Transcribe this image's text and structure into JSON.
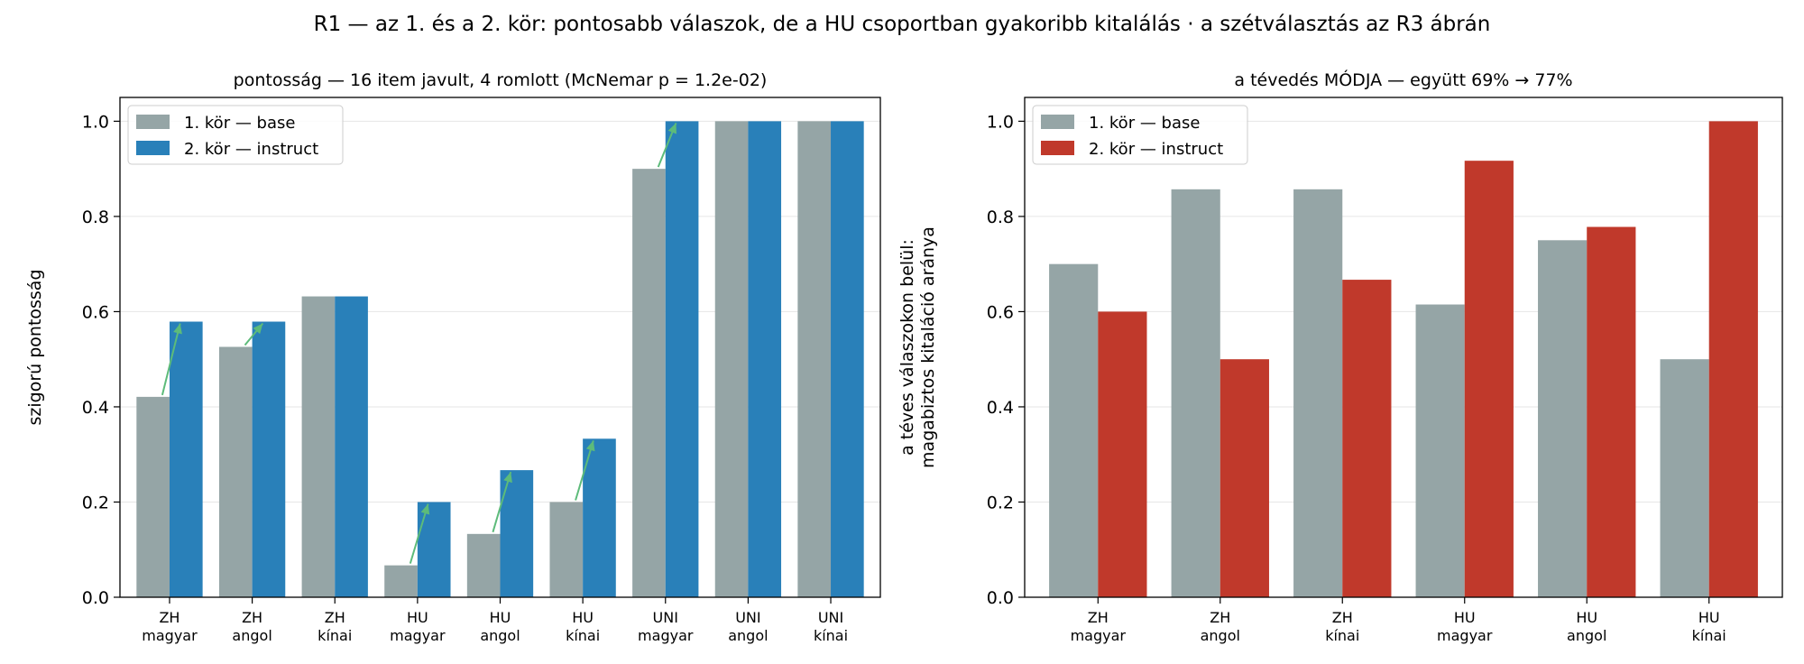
{
  "figure": {
    "suptitle": "R1 — az 1. és a 2. kör: pontosabb válaszok, de a HU csoportban gyakoribb kitalálás  ·  a szétválasztás az R3 ábrán"
  },
  "colors": {
    "base": "#95a5a6",
    "instruct_accuracy": "#2980b9",
    "instruct_guess": "#c0392b",
    "arrow": "#5dbb7a",
    "grid": "#e6e6e6"
  },
  "chart_data": [
    {
      "type": "bar",
      "title": "pontosság — 16 item javult, 4 romlott (McNemar p = 1.2e-02)",
      "xlabel": "",
      "ylabel": "szigorú pontosság",
      "ylim": [
        0,
        1.05
      ],
      "yticks": [
        "0.0",
        "0.2",
        "0.4",
        "0.6",
        "0.8",
        "1.0"
      ],
      "grid": "horizontal",
      "legend_position": "top-left",
      "categories": [
        [
          "ZH",
          "magyar"
        ],
        [
          "ZH",
          "angol"
        ],
        [
          "ZH",
          "kínai"
        ],
        [
          "HU",
          "magyar"
        ],
        [
          "HU",
          "angol"
        ],
        [
          "HU",
          "kínai"
        ],
        [
          "UNI",
          "magyar"
        ],
        [
          "UNI",
          "angol"
        ],
        [
          "UNI",
          "kínai"
        ]
      ],
      "series": [
        {
          "name": "1. kör — base",
          "values": [
            0.421,
            0.526,
            0.632,
            0.067,
            0.133,
            0.2,
            0.9,
            1.0,
            1.0
          ]
        },
        {
          "name": "2. kör — instruct",
          "values": [
            0.579,
            0.579,
            0.632,
            0.2,
            0.267,
            0.333,
            1.0,
            1.0,
            1.0
          ]
        }
      ],
      "annotations": "improvement arrows from series 1 to series 2 where value increased"
    },
    {
      "type": "bar",
      "title": "a tévedés MÓDJA — együtt 69% → 77%",
      "xlabel": "",
      "ylabel": [
        "a téves válaszokon belül:",
        "magabiztos kitaláció aránya"
      ],
      "ylim": [
        0,
        1.05
      ],
      "yticks": [
        "0.0",
        "0.2",
        "0.4",
        "0.6",
        "0.8",
        "1.0"
      ],
      "grid": "horizontal",
      "legend_position": "top-left",
      "categories": [
        [
          "ZH",
          "magyar"
        ],
        [
          "ZH",
          "angol"
        ],
        [
          "ZH",
          "kínai"
        ],
        [
          "HU",
          "magyar"
        ],
        [
          "HU",
          "angol"
        ],
        [
          "HU",
          "kínai"
        ]
      ],
      "series": [
        {
          "name": "1. kör — base",
          "values": [
            0.7,
            0.857,
            0.857,
            0.615,
            0.75,
            0.5
          ]
        },
        {
          "name": "2. kör — instruct",
          "values": [
            0.6,
            0.5,
            0.667,
            0.917,
            0.778,
            1.0
          ]
        }
      ]
    }
  ]
}
